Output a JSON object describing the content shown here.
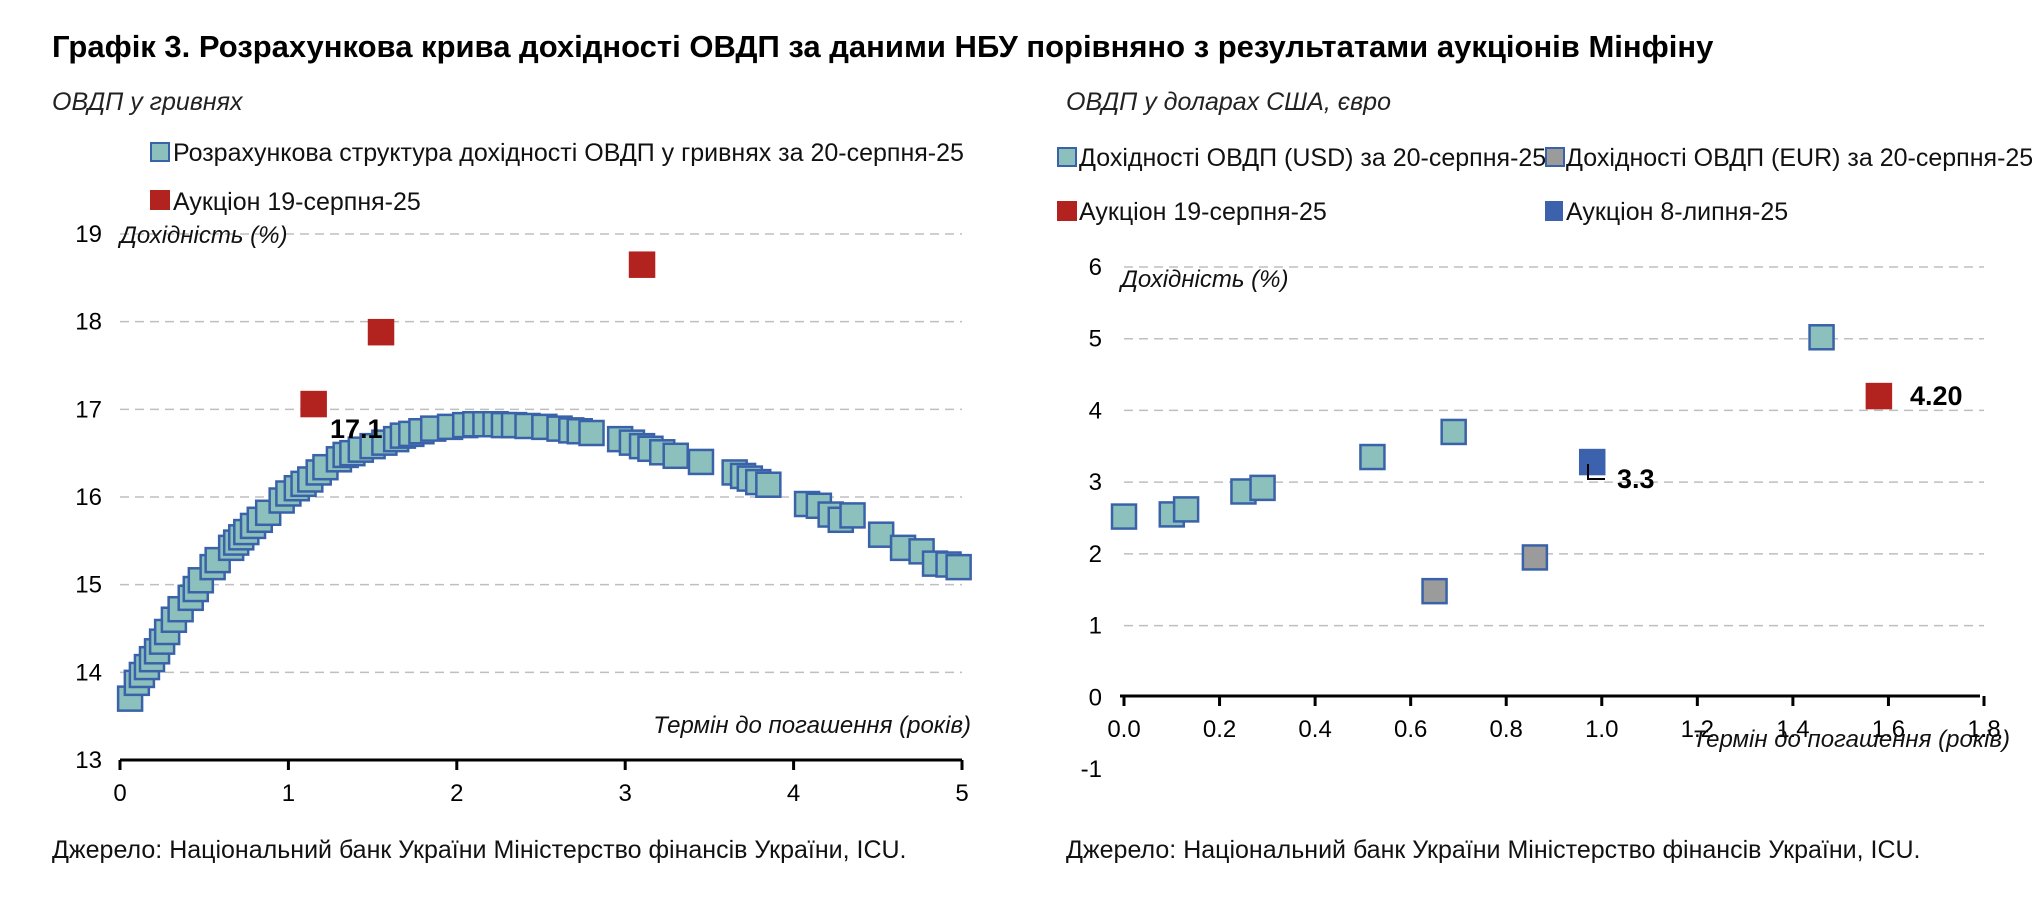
{
  "title": "Графік 3. Розрахункова крива дохідності ОВДП за даними НБУ порівняно з результатами аукціонів Мінфіну",
  "colors": {
    "teal_fill": "#8cc0bc",
    "teal_stroke": "#3a62a8",
    "red_fill": "#b2221f",
    "blue_fill": "#3c61ad",
    "gray_fill": "#9b9b9b"
  },
  "chart_data": [
    {
      "type": "scatter",
      "subtitle": "ОВДП у гривнях",
      "ylabel": "Дохідність (%)",
      "xlabel": "Термін до погашення (років)",
      "xlim": [
        0,
        5
      ],
      "ylim": [
        13,
        19
      ],
      "xticks": [
        "0",
        "1",
        "2",
        "3",
        "4",
        "5"
      ],
      "yticks": [
        "13",
        "14",
        "15",
        "16",
        "17",
        "18",
        "19"
      ],
      "grid": true,
      "legend": [
        "Розрахункова структура дохідності ОВДП у гривнях за 20-серпня-25",
        "Аукціон 19-серпня-25"
      ],
      "annotation": "17.1",
      "source": "Джерело: Національний банк України Міністерство фінансів України, ICU.",
      "series": [
        {
          "name": "Розрахункова структура дохідності ОВДП у гривнях за 20-серпня-25",
          "color": "teal",
          "points": [
            [
              0.06,
              13.7
            ],
            [
              0.1,
              13.88
            ],
            [
              0.13,
              13.97
            ],
            [
              0.16,
              14.06
            ],
            [
              0.19,
              14.15
            ],
            [
              0.22,
              14.24
            ],
            [
              0.25,
              14.35
            ],
            [
              0.28,
              14.46
            ],
            [
              0.32,
              14.6
            ],
            [
              0.36,
              14.72
            ],
            [
              0.42,
              14.85
            ],
            [
              0.45,
              14.95
            ],
            [
              0.48,
              15.05
            ],
            [
              0.55,
              15.2
            ],
            [
              0.58,
              15.28
            ],
            [
              0.66,
              15.42
            ],
            [
              0.69,
              15.48
            ],
            [
              0.72,
              15.54
            ],
            [
              0.75,
              15.6
            ],
            [
              0.79,
              15.67
            ],
            [
              0.83,
              15.74
            ],
            [
              0.88,
              15.82
            ],
            [
              0.96,
              15.96
            ],
            [
              1.0,
              16.04
            ],
            [
              1.05,
              16.1
            ],
            [
              1.09,
              16.15
            ],
            [
              1.13,
              16.2
            ],
            [
              1.18,
              16.28
            ],
            [
              1.22,
              16.34
            ],
            [
              1.3,
              16.43
            ],
            [
              1.34,
              16.48
            ],
            [
              1.38,
              16.5
            ],
            [
              1.43,
              16.54
            ],
            [
              1.5,
              16.58
            ],
            [
              1.57,
              16.62
            ],
            [
              1.64,
              16.66
            ],
            [
              1.68,
              16.7
            ],
            [
              1.73,
              16.72
            ],
            [
              1.79,
              16.75
            ],
            [
              1.86,
              16.78
            ],
            [
              1.96,
              16.8
            ],
            [
              2.05,
              16.82
            ],
            [
              2.11,
              16.83
            ],
            [
              2.17,
              16.83
            ],
            [
              2.23,
              16.83
            ],
            [
              2.28,
              16.82
            ],
            [
              2.34,
              16.82
            ],
            [
              2.42,
              16.81
            ],
            [
              2.52,
              16.8
            ],
            [
              2.61,
              16.78
            ],
            [
              2.68,
              16.76
            ],
            [
              2.73,
              16.75
            ],
            [
              2.8,
              16.73
            ],
            [
              2.97,
              16.66
            ],
            [
              3.04,
              16.62
            ],
            [
              3.1,
              16.58
            ],
            [
              3.15,
              16.55
            ],
            [
              3.22,
              16.51
            ],
            [
              3.3,
              16.47
            ],
            [
              3.45,
              16.4
            ],
            [
              3.65,
              16.28
            ],
            [
              3.7,
              16.24
            ],
            [
              3.74,
              16.21
            ],
            [
              3.79,
              16.17
            ],
            [
              3.85,
              16.14
            ],
            [
              4.08,
              15.92
            ],
            [
              4.15,
              15.9
            ],
            [
              4.22,
              15.8
            ],
            [
              4.28,
              15.74
            ],
            [
              4.35,
              15.79
            ],
            [
              4.52,
              15.57
            ],
            [
              4.65,
              15.42
            ],
            [
              4.76,
              15.38
            ],
            [
              4.84,
              15.24
            ],
            [
              4.92,
              15.23
            ],
            [
              4.98,
              15.2
            ]
          ]
        },
        {
          "name": "Аукціон 19-серпня-25",
          "color": "red",
          "points": [
            [
              1.15,
              17.06
            ],
            [
              1.55,
              17.88
            ],
            [
              3.1,
              18.65
            ]
          ]
        }
      ]
    },
    {
      "type": "scatter",
      "subtitle": "ОВДП у доларах США, євро",
      "ylabel": "Дохідність (%)",
      "xlabel": "Термін до погашення (років)",
      "xlim": [
        0,
        1.8
      ],
      "ylim": [
        -1,
        6
      ],
      "xticks": [
        "0.0",
        "0.2",
        "0.4",
        "0.6",
        "0.8",
        "1.0",
        "1.2",
        "1.4",
        "1.6",
        "1.8"
      ],
      "yticks": [
        "-1",
        "0",
        "1",
        "2",
        "3",
        "4",
        "5",
        "6"
      ],
      "grid": true,
      "legend": [
        "Дохідності ОВДП (USD) за 20-серпня-25",
        "Дохідності ОВДП (EUR) за 20-серпня-25",
        "Аукціон 19-серпня-25",
        "Аукціон 8-липня-25"
      ],
      "annotations": [
        "4.20",
        "3.3"
      ],
      "source": "Джерело: Національний банк України Міністерство фінансів України, ICU.",
      "series": [
        {
          "name": "Дохідності ОВДП (USD) за 20-серпня-25",
          "color": "teal",
          "points": [
            [
              0.0,
              2.52
            ],
            [
              0.1,
              2.55
            ],
            [
              0.13,
              2.62
            ],
            [
              0.25,
              2.87
            ],
            [
              0.29,
              2.92
            ],
            [
              0.52,
              3.35
            ],
            [
              0.69,
              3.7
            ],
            [
              1.46,
              5.02
            ]
          ]
        },
        {
          "name": "Дохідності ОВДП (EUR) за 20-серпня-25",
          "color": "gray",
          "points": [
            [
              0.65,
              1.48
            ],
            [
              0.86,
              1.95
            ]
          ]
        },
        {
          "name": "Аукціон 19-серпня-25",
          "color": "red",
          "points": [
            [
              1.58,
              4.2
            ]
          ]
        },
        {
          "name": "Аукціон 8-липня-25",
          "color": "blue",
          "points": [
            [
              0.98,
              3.28
            ]
          ]
        }
      ]
    }
  ]
}
